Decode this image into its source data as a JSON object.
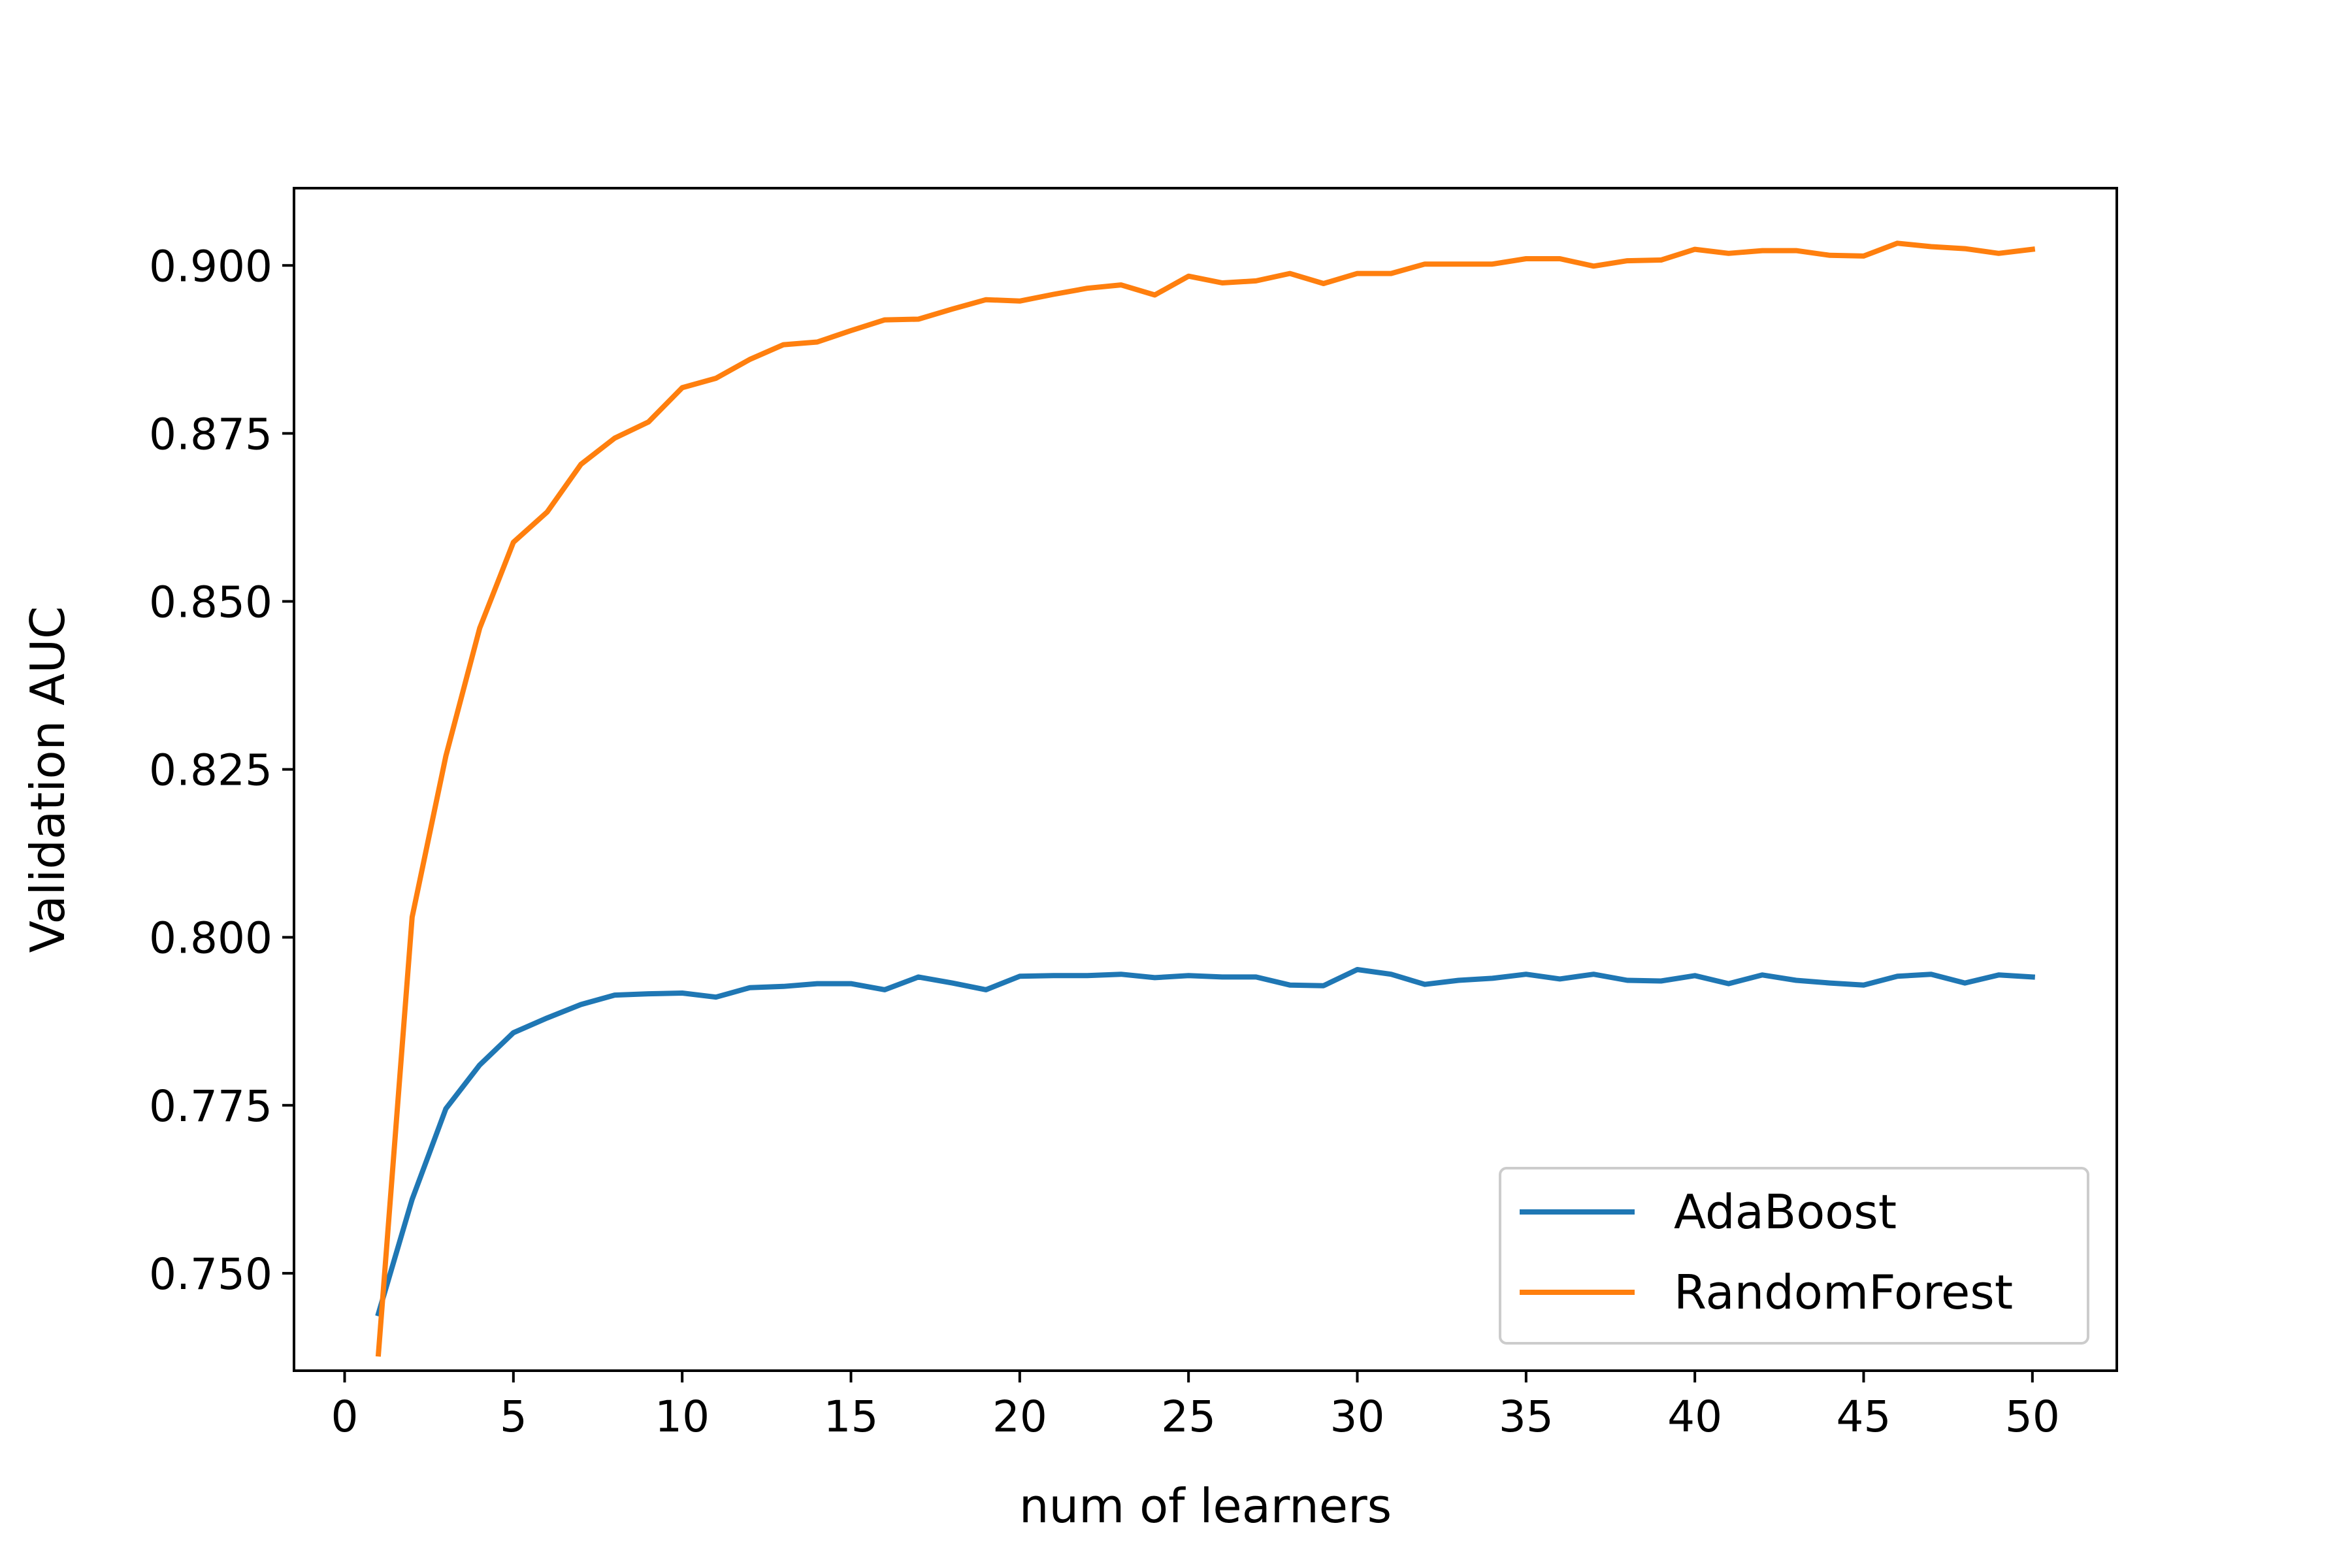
{
  "chart_data": {
    "type": "line",
    "xlabel": "num of learners",
    "ylabel": "Validation AUC",
    "xlim": [
      -1.5,
      52.5
    ],
    "ylim": [
      0.7355,
      0.9115
    ],
    "xticks": [
      0,
      5,
      10,
      15,
      20,
      25,
      30,
      35,
      40,
      45,
      50
    ],
    "yticks": [
      0.75,
      0.775,
      0.8,
      0.825,
      0.85,
      0.875,
      0.9
    ],
    "ytick_labels": [
      "0.750",
      "0.775",
      "0.800",
      "0.825",
      "0.850",
      "0.875",
      "0.900"
    ],
    "xtick_labels": [
      "0",
      "5",
      "10",
      "15",
      "20",
      "25",
      "30",
      "35",
      "40",
      "45",
      "50"
    ],
    "grid": false,
    "legend": "lower-right",
    "x": [
      1,
      2,
      3,
      4,
      5,
      6,
      7,
      8,
      9,
      10,
      11,
      12,
      13,
      14,
      15,
      16,
      17,
      18,
      19,
      20,
      21,
      22,
      23,
      24,
      25,
      26,
      27,
      28,
      29,
      30,
      31,
      32,
      33,
      34,
      35,
      36,
      37,
      38,
      39,
      40,
      41,
      42,
      43,
      44,
      45,
      46,
      47,
      48,
      49,
      50
    ],
    "series": [
      {
        "name": "AdaBoost",
        "color": "#1f77b4",
        "values": [
          0.744,
          0.761,
          0.7745,
          0.781,
          0.7858,
          0.788,
          0.79,
          0.7914,
          0.7916,
          0.7917,
          0.7911,
          0.7925,
          0.7927,
          0.7931,
          0.7931,
          0.7922,
          0.7941,
          0.7932,
          0.7922,
          0.7942,
          0.7943,
          0.7943,
          0.7945,
          0.794,
          0.7943,
          0.7941,
          0.7941,
          0.7929,
          0.7928,
          0.7952,
          0.7945,
          0.793,
          0.7936,
          0.7939,
          0.7945,
          0.7938,
          0.7945,
          0.7936,
          0.7935,
          0.7943,
          0.7931,
          0.7944,
          0.7936,
          0.7932,
          0.7929,
          0.7942,
          0.7945,
          0.7932,
          0.7944,
          0.7941
        ]
      },
      {
        "name": "RandomForest",
        "color": "#ff7f0e",
        "values": [
          0.738,
          0.803,
          0.827,
          0.846,
          0.8588,
          0.8633,
          0.8704,
          0.8743,
          0.8767,
          0.8818,
          0.8832,
          0.886,
          0.8882,
          0.8886,
          0.8903,
          0.8919,
          0.892,
          0.8935,
          0.8949,
          0.8947,
          0.8957,
          0.8966,
          0.8971,
          0.8956,
          0.8984,
          0.8974,
          0.8977,
          0.8988,
          0.8973,
          0.8988,
          0.8988,
          0.9002,
          0.9002,
          0.9002,
          0.901,
          0.901,
          0.8999,
          0.9007,
          0.9008,
          0.9024,
          0.9018,
          0.9022,
          0.9022,
          0.9015,
          0.9014,
          0.9033,
          0.9028,
          0.9025,
          0.9018,
          0.9024
        ]
      }
    ]
  }
}
